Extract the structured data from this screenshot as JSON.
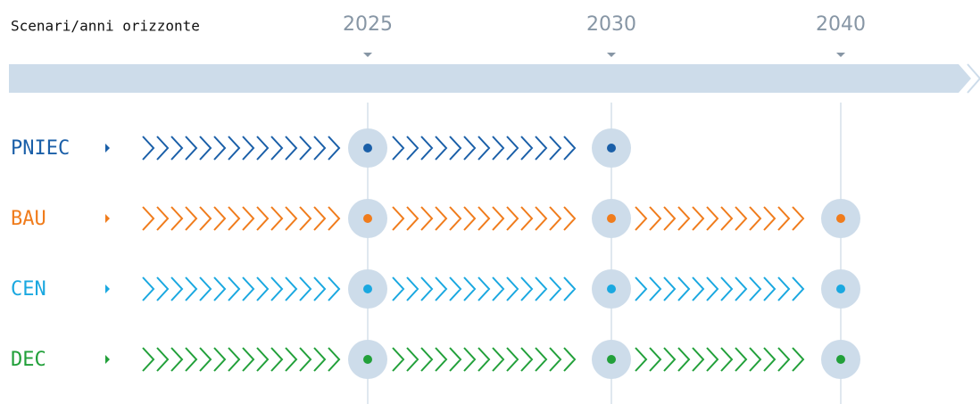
{
  "header": {
    "title": "Scenari/anni orizzonte",
    "years": [
      "2025",
      "2030",
      "2040"
    ]
  },
  "scenarios": [
    {
      "name": "PNIEC",
      "color": "#1a5fa8",
      "horizon_count": 2
    },
    {
      "name": "BAU",
      "color": "#f07c1c",
      "horizon_count": 3
    },
    {
      "name": "CEN",
      "color": "#1aa8e0",
      "horizon_count": 3
    },
    {
      "name": "DEC",
      "color": "#22a03a",
      "horizon_count": 3
    }
  ]
}
